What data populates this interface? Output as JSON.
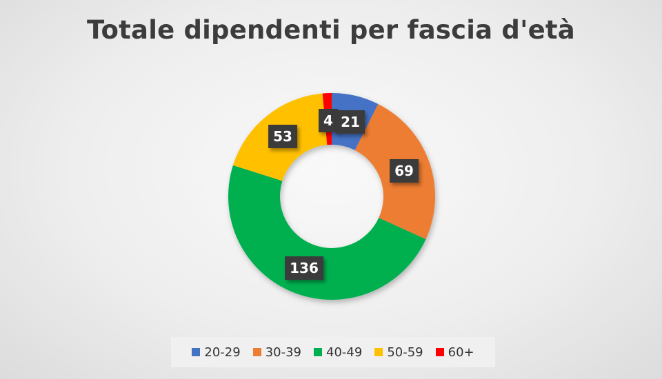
{
  "chart_data": {
    "type": "pie",
    "variant": "donut",
    "title": "Totale dipendenti per fascia d'età",
    "categories": [
      "20-29",
      "30-39",
      "40-49",
      "50-59",
      "60+"
    ],
    "values": [
      21,
      69,
      136,
      53,
      4
    ],
    "colors": [
      "#4472C4",
      "#ED7D31",
      "#00B050",
      "#FFC000",
      "#FF0000"
    ],
    "data_labels": [
      "21",
      "69",
      "136",
      "53",
      "4"
    ],
    "start_angle_deg": 0,
    "direction": "clockwise",
    "legend": {
      "position": "bottom",
      "entries": [
        "20-29",
        "30-39",
        "40-49",
        "50-59",
        "60+"
      ]
    }
  }
}
